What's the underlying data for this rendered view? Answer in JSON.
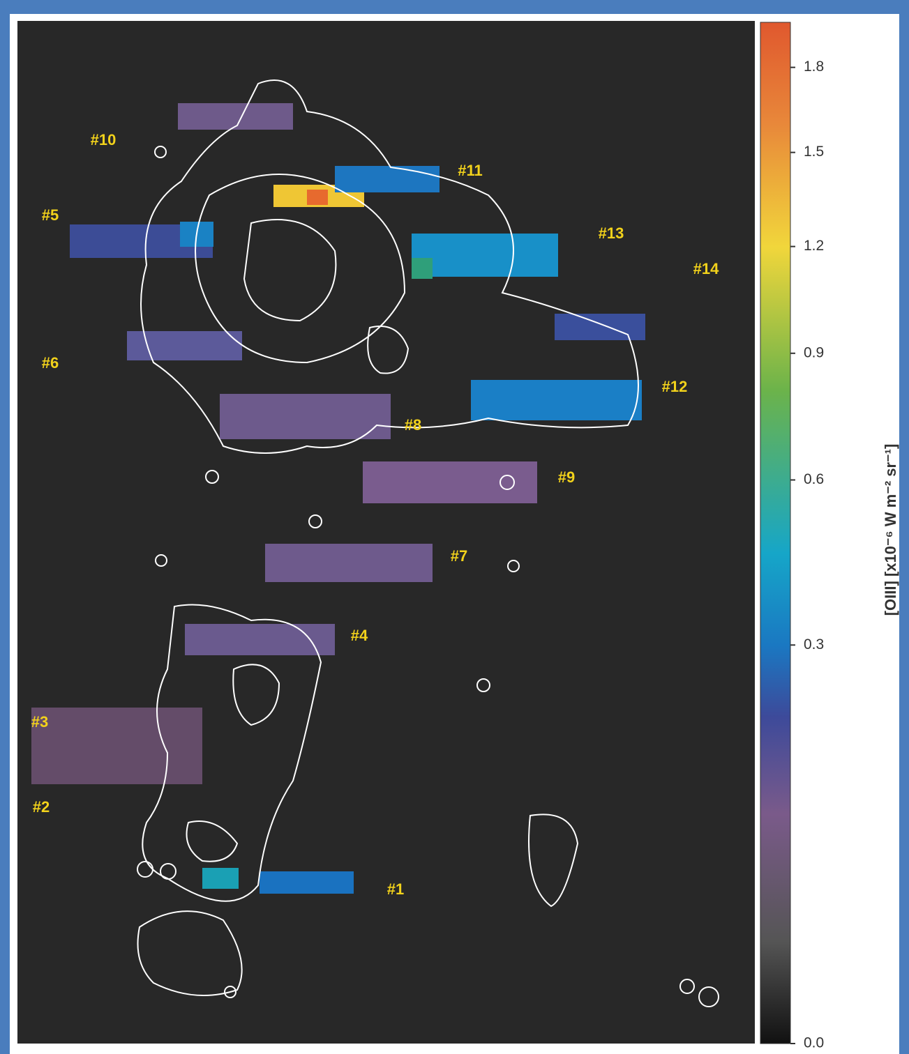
{
  "regions": [
    "#1",
    "#2",
    "#3",
    "#4",
    "#5",
    "#6",
    "#7",
    "#8",
    "#9",
    "#10",
    "#11",
    "#12",
    "#13",
    "#14"
  ],
  "colorbar": {
    "label": "[OIII] [x10⁻⁶ W m⁻² sr⁻¹]",
    "scale": "sqrt",
    "clim": [
      0,
      1.97
    ],
    "ticks": [
      {
        "value": 0,
        "label": "0.0"
      },
      0.3,
      0.6,
      0.9,
      1.2,
      1.5,
      1.8
    ]
  }
}
